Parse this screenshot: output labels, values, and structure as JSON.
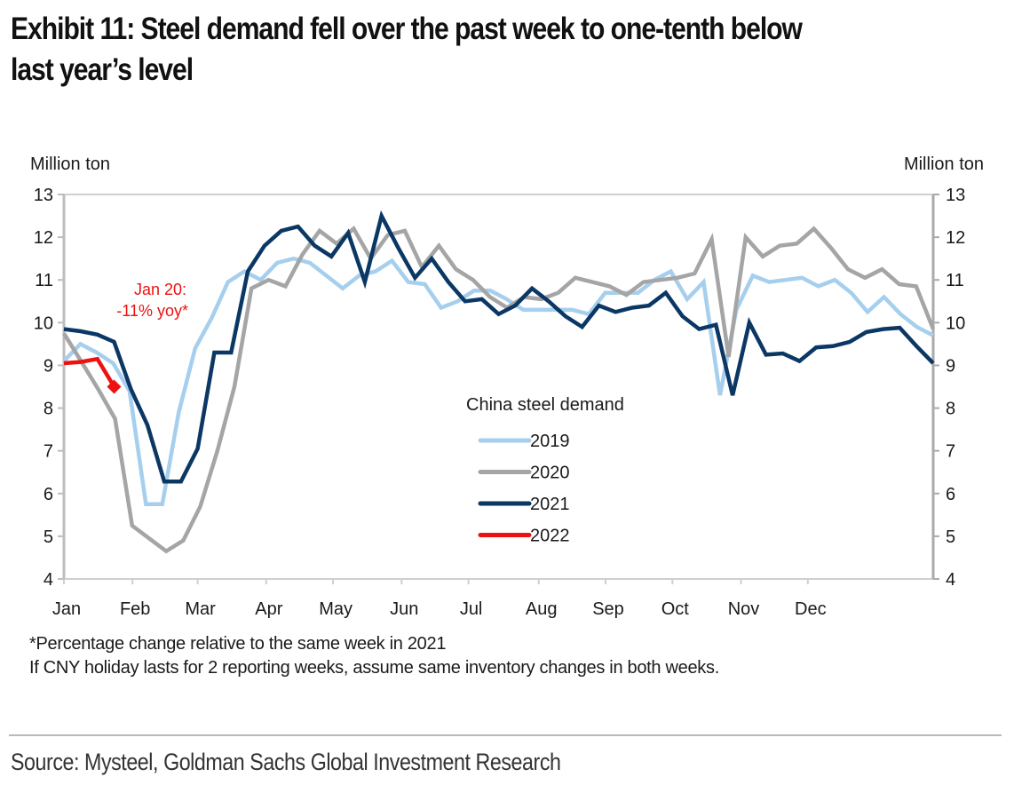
{
  "header": {
    "title_line1": "Exhibit 11: Steel demand fell over the past week to one-tenth below",
    "title_line2": "last year’s level"
  },
  "footnotes": {
    "line1": "*Percentage change relative to the same week in 2021",
    "line2": "If CNY holiday lasts for 2 reporting weeks, assume same inventory changes in both weeks."
  },
  "source": "Source: Mysteel, Goldman Sachs Global Investment Research",
  "chart_data": {
    "type": "line",
    "title": "Steel demand fell over the past week to one-tenth below last year’s level",
    "xlabel": "",
    "ylabel": "Million ton",
    "ylabel_right": "Million ton",
    "ylim": [
      4,
      13
    ],
    "yticks": [
      4,
      5,
      6,
      7,
      8,
      9,
      10,
      11,
      12,
      13
    ],
    "x_unit": "week of year (0-52)",
    "xlim": [
      0,
      52
    ],
    "month_ticks": [
      {
        "label": "Jan",
        "week": 0
      },
      {
        "label": "Feb",
        "week": 4.1
      },
      {
        "label": "Mar",
        "week": 8.0
      },
      {
        "label": "Apr",
        "week": 12.1
      },
      {
        "label": "May",
        "week": 16.1
      },
      {
        "label": "Jun",
        "week": 20.2
      },
      {
        "label": "Jul",
        "week": 24.2
      },
      {
        "label": "Aug",
        "week": 28.4
      },
      {
        "label": "Sep",
        "week": 32.4
      },
      {
        "label": "Oct",
        "week": 36.4
      },
      {
        "label": "Nov",
        "week": 40.5
      },
      {
        "label": "Dec",
        "week": 44.5
      }
    ],
    "grid": false,
    "legend": {
      "title": "China steel demand",
      "position": "center-lower"
    },
    "series": [
      {
        "name": "2019",
        "color": "#a6cfee",
        "values": [
          9.1,
          9.5,
          9.3,
          9.05,
          8.4,
          5.75,
          5.75,
          7.9,
          9.4,
          10.1,
          10.95,
          11.2,
          11.0,
          11.4,
          11.5,
          11.4,
          11.1,
          10.8,
          11.1,
          11.2,
          11.45,
          10.95,
          10.9,
          10.35,
          10.5,
          10.75,
          10.75,
          10.55,
          10.3,
          10.3,
          10.3,
          10.3,
          10.2,
          10.7,
          10.7,
          10.7,
          11.0,
          11.2,
          10.55,
          10.95,
          8.3,
          10.3,
          11.1,
          10.95,
          11.0,
          11.05,
          10.85,
          11.0,
          10.7,
          10.25,
          10.6,
          10.2,
          9.9,
          9.7
        ]
      },
      {
        "name": "2020",
        "color": "#a5a5a5",
        "values": [
          9.75,
          9.1,
          8.45,
          7.75,
          5.25,
          4.95,
          4.65,
          4.9,
          5.7,
          7.0,
          8.5,
          10.8,
          11.0,
          10.85,
          11.6,
          12.15,
          11.85,
          12.2,
          11.5,
          12.05,
          12.15,
          11.3,
          11.8,
          11.25,
          11.0,
          10.6,
          10.35,
          10.6,
          10.55,
          10.7,
          11.05,
          10.95,
          10.85,
          10.65,
          10.95,
          11.0,
          11.05,
          11.15,
          11.95,
          9.2,
          12.0,
          11.55,
          11.8,
          11.85,
          12.2,
          11.75,
          11.25,
          11.05,
          11.25,
          10.9,
          10.85,
          9.85
        ]
      },
      {
        "name": "2021",
        "color": "#0b3765",
        "values": [
          9.85,
          9.8,
          9.72,
          9.55,
          8.45,
          7.6,
          6.28,
          6.28,
          7.05,
          9.3,
          9.3,
          11.2,
          11.8,
          12.15,
          12.25,
          11.8,
          11.55,
          12.1,
          10.95,
          12.5,
          11.75,
          11.05,
          11.5,
          10.95,
          10.5,
          10.55,
          10.2,
          10.4,
          10.8,
          10.5,
          10.15,
          9.9,
          10.4,
          10.25,
          10.35,
          10.4,
          10.7,
          10.15,
          9.85,
          9.95,
          8.3,
          10.0,
          9.25,
          9.28,
          9.1,
          9.42,
          9.45,
          9.55,
          9.78,
          9.85,
          9.88,
          9.45,
          9.05
        ]
      },
      {
        "name": "2022",
        "color": "#ee1111",
        "values": [
          9.05,
          9.08,
          9.15,
          8.5
        ]
      }
    ],
    "annotations": [
      {
        "text_line1": "Jan 20:",
        "text_line2": "-11% yoy*",
        "color": "#ee1111",
        "points_to": {
          "series": "2022",
          "week": 3,
          "value": 8.5
        },
        "marker": "diamond"
      }
    ]
  }
}
